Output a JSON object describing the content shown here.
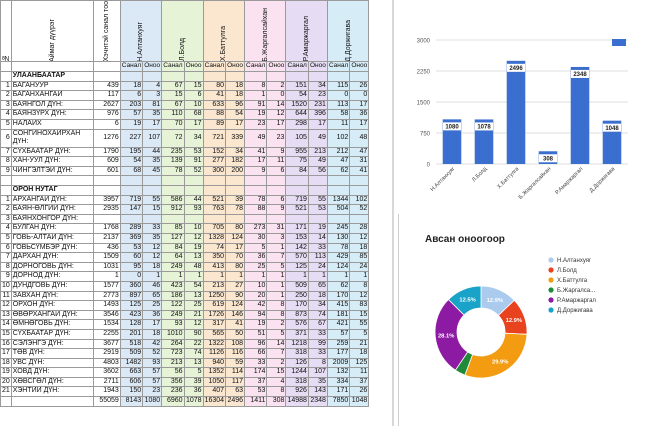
{
  "table": {
    "headers": {
      "no": "№",
      "aimag": "Аймаг дүүрэг",
      "voters": "Хэчнтэй санал тоо",
      "candidates": [
        "Н.Алтанхуяг",
        "Л.Болд",
        "Х.Баттулга",
        "Б.Жаргалсайхан",
        "Р.Амаржаргал",
        "Д.Доржигава"
      ],
      "sanal": "Санал",
      "onoo": "Оноо"
    },
    "rows": [
      {
        "type": "section",
        "name": "УЛААНБААТАР"
      },
      {
        "no": "1",
        "name": "БАГАНУУР",
        "v": [
          "439",
          "18",
          "4",
          "67",
          "15",
          "80",
          "18",
          "8",
          "2",
          "151",
          "34",
          "115",
          "26"
        ]
      },
      {
        "no": "2",
        "name": "БАГАНХАНГАЙ",
        "v": [
          "117",
          "6",
          "3",
          "15",
          "6",
          "41",
          "18",
          "1",
          "0",
          "54",
          "23",
          "0",
          "0"
        ]
      },
      {
        "no": "3",
        "name": "БАЯНГОЛ ДҮН:",
        "v": [
          "2627",
          "203",
          "81",
          "67",
          "10",
          "633",
          "96",
          "91",
          "14",
          "1520",
          "231",
          "113",
          "17"
        ]
      },
      {
        "no": "4",
        "name": "БАЯНЗҮРХ ДҮН:",
        "v": [
          "976",
          "57",
          "35",
          "110",
          "68",
          "88",
          "54",
          "19",
          "12",
          "644",
          "396",
          "58",
          "36"
        ]
      },
      {
        "no": "5",
        "name": "НАЛАЙХ",
        "v": [
          "6",
          "19",
          "17",
          "70",
          "17",
          "89",
          "17",
          "23",
          "17",
          "298",
          "17",
          "11",
          "17"
        ]
      },
      {
        "no": "6",
        "name": "СОНГИНОХАЙРХАН ДҮН:",
        "tall": true,
        "v": [
          "1276",
          "227",
          "107",
          "72",
          "34",
          "721",
          "339",
          "49",
          "23",
          "105",
          "49",
          "102",
          "48"
        ]
      },
      {
        "no": "7",
        "name": "СҮХБААТАР ДҮН:",
        "v": [
          "1790",
          "195",
          "44",
          "235",
          "53",
          "152",
          "34",
          "41",
          "9",
          "955",
          "213",
          "212",
          "47"
        ]
      },
      {
        "no": "8",
        "name": "ХАН-УУЛ ДҮН:",
        "v": [
          "609",
          "54",
          "35",
          "139",
          "91",
          "277",
          "182",
          "17",
          "11",
          "75",
          "49",
          "47",
          "31"
        ]
      },
      {
        "no": "9",
        "name": "ЧИНГЭЛТЭЙ ДҮН:",
        "v": [
          "601",
          "68",
          "45",
          "78",
          "52",
          "300",
          "200",
          "9",
          "6",
          "84",
          "56",
          "62",
          "41"
        ]
      },
      {
        "type": "blank"
      },
      {
        "type": "section",
        "name": "ОРОН НУТАГ"
      },
      {
        "no": "1",
        "name": "АРХАНГАЙ ДҮН:",
        "v": [
          "3957",
          "719",
          "55",
          "586",
          "44",
          "521",
          "39",
          "78",
          "6",
          "719",
          "55",
          "1344",
          "102"
        ]
      },
      {
        "no": "2",
        "name": "БАЯН-ӨЛГИЙ ДҮН:",
        "v": [
          "2935",
          "147",
          "15",
          "912",
          "93",
          "763",
          "78",
          "88",
          "9",
          "521",
          "53",
          "504",
          "52"
        ]
      },
      {
        "no": "3",
        "name": "БАЯНХОНГОР ДҮН:",
        "v": [
          "",
          "",
          "",
          "",
          "",
          "",
          "",
          "",
          "",
          "",
          "",
          "",
          ""
        ]
      },
      {
        "no": "4",
        "name": "БУЛГАН ДҮН:",
        "v": [
          "1768",
          "289",
          "33",
          "85",
          "10",
          "705",
          "80",
          "273",
          "31",
          "171",
          "19",
          "245",
          "28"
        ]
      },
      {
        "no": "5",
        "name": "ГОВЬ-АЛТАЙ ДҮН:",
        "v": [
          "2137",
          "369",
          "35",
          "127",
          "12",
          "1328",
          "124",
          "30",
          "3",
          "153",
          "14",
          "130",
          "12"
        ]
      },
      {
        "no": "6",
        "name": "ГОВЬСҮМБЭР ДҮН:",
        "v": [
          "436",
          "53",
          "12",
          "84",
          "19",
          "74",
          "17",
          "5",
          "1",
          "142",
          "33",
          "78",
          "18"
        ]
      },
      {
        "no": "7",
        "name": "ДАРХАН ДҮН:",
        "v": [
          "1509",
          "60",
          "12",
          "64",
          "13",
          "350",
          "70",
          "36",
          "7",
          "570",
          "113",
          "429",
          "85"
        ]
      },
      {
        "no": "8",
        "name": "ДОРНОГОВЬ ДҮН:",
        "v": [
          "1031",
          "95",
          "18",
          "249",
          "48",
          "413",
          "80",
          "25",
          "5",
          "125",
          "24",
          "124",
          "24"
        ]
      },
      {
        "no": "9",
        "name": "ДОРНОД ДҮН:",
        "v": [
          "1",
          "0",
          "1",
          "1",
          "1",
          "1",
          "1",
          "1",
          "1",
          "1",
          "1",
          "1",
          "1"
        ]
      },
      {
        "no": "10",
        "name": "ДУНДГОВЬ ДҮН:",
        "v": [
          "1577",
          "360",
          "46",
          "423",
          "54",
          "213",
          "27",
          "10",
          "1",
          "509",
          "65",
          "62",
          "8"
        ]
      },
      {
        "no": "11",
        "name": "ЗАВХАН ДҮН:",
        "v": [
          "2773",
          "897",
          "65",
          "186",
          "13",
          "1250",
          "90",
          "20",
          "1",
          "250",
          "18",
          "170",
          "12"
        ]
      },
      {
        "no": "12",
        "name": "ОРХОН ДҮН:",
        "v": [
          "1493",
          "125",
          "25",
          "122",
          "25",
          "619",
          "124",
          "42",
          "8",
          "170",
          "34",
          "415",
          "83"
        ]
      },
      {
        "no": "13",
        "name": "ӨВӨРХАНГАЙ ДҮН:",
        "v": [
          "3546",
          "423",
          "36",
          "249",
          "21",
          "1726",
          "146",
          "94",
          "8",
          "873",
          "74",
          "181",
          "15"
        ]
      },
      {
        "no": "14",
        "name": "ӨМНӨГОВЬ ДҮН:",
        "v": [
          "1534",
          "128",
          "17",
          "93",
          "12",
          "317",
          "41",
          "19",
          "2",
          "576",
          "67",
          "421",
          "55"
        ]
      },
      {
        "no": "15",
        "name": "СҮХБААТАР ДҮН:",
        "v": [
          "2255",
          "201",
          "18",
          "1010",
          "90",
          "565",
          "50",
          "51",
          "5",
          "371",
          "33",
          "57",
          "5"
        ]
      },
      {
        "no": "16",
        "name": "СЭЛЭНГЭ ДҮН:",
        "v": [
          "3677",
          "518",
          "42",
          "264",
          "22",
          "1322",
          "108",
          "96",
          "14",
          "1218",
          "99",
          "259",
          "21"
        ]
      },
      {
        "no": "17",
        "name": "ТӨВ ДҮН:",
        "v": [
          "2919",
          "509",
          "52",
          "723",
          "74",
          "1126",
          "116",
          "66",
          "7",
          "318",
          "33",
          "177",
          "18"
        ]
      },
      {
        "no": "18",
        "name": "УВС ДҮН:",
        "v": [
          "4803",
          "1482",
          "93",
          "213",
          "13",
          "940",
          "59",
          "33",
          "2",
          "126",
          "8",
          "2009",
          "125"
        ]
      },
      {
        "no": "19",
        "name": "ХОВД ДҮН:",
        "v": [
          "3602",
          "663",
          "57",
          "56",
          "5",
          "1352",
          "114",
          "174",
          "15",
          "1244",
          "107",
          "132",
          "11"
        ]
      },
      {
        "no": "20",
        "name": "ХӨВСГӨЛ ДҮН:",
        "v": [
          "2711",
          "606",
          "57",
          "356",
          "39",
          "1050",
          "117",
          "37",
          "4",
          "318",
          "35",
          "334",
          "37"
        ]
      },
      {
        "no": "21",
        "name": "ХЭНТИЙ ДҮН:",
        "v": [
          "1943",
          "150",
          "23",
          "236",
          "36",
          "407",
          "63",
          "53",
          "8",
          "926",
          "143",
          "171",
          "26"
        ]
      },
      {
        "type": "total",
        "v": [
          "55059",
          "8143",
          "1080",
          "6960",
          "1078",
          "16304",
          "2496",
          "1411",
          "308",
          "14988",
          "2348",
          "7850",
          "1048"
        ]
      }
    ]
  },
  "bar_chart": {
    "chart_data": {
      "type": "bar",
      "categories": [
        "Н.Алтанхуяг",
        "Л.Болд",
        "Х.Баттулга",
        "Б.Жаргалсайхан",
        "Р.Амаржаргал",
        "Д.Доржигава"
      ],
      "values": [
        1080,
        1078,
        2496,
        308,
        2348,
        1048
      ],
      "ylim": [
        0,
        3000
      ],
      "yticks": [
        0,
        750,
        1500,
        2250,
        3000
      ],
      "bar_color": "#3a6fd0",
      "grid": true,
      "legend": "top-right swatch"
    }
  },
  "pie_chart": {
    "title": "Авсан оноогоор",
    "chart_data": {
      "type": "pie",
      "title": "Авсан оноогоор",
      "labels": [
        "Н.Алтанхуяг",
        "Л.Болд",
        "Х.Баттулга",
        "Б.Жаргалса...",
        "Р.Амаржаргал",
        "Д.Доржигава"
      ],
      "values": [
        12.9,
        12.9,
        29.9,
        3.7,
        28.1,
        12.5
      ],
      "value_labels": [
        "12.9%",
        "12.9%",
        "29.9%",
        "",
        "28.1%",
        "12.5%"
      ],
      "colors": [
        "#aacbee",
        "#e8421f",
        "#f39c12",
        "#1e8a3a",
        "#8c1aa3",
        "#1aa3c8"
      ],
      "donut": true,
      "legend": "right"
    }
  }
}
